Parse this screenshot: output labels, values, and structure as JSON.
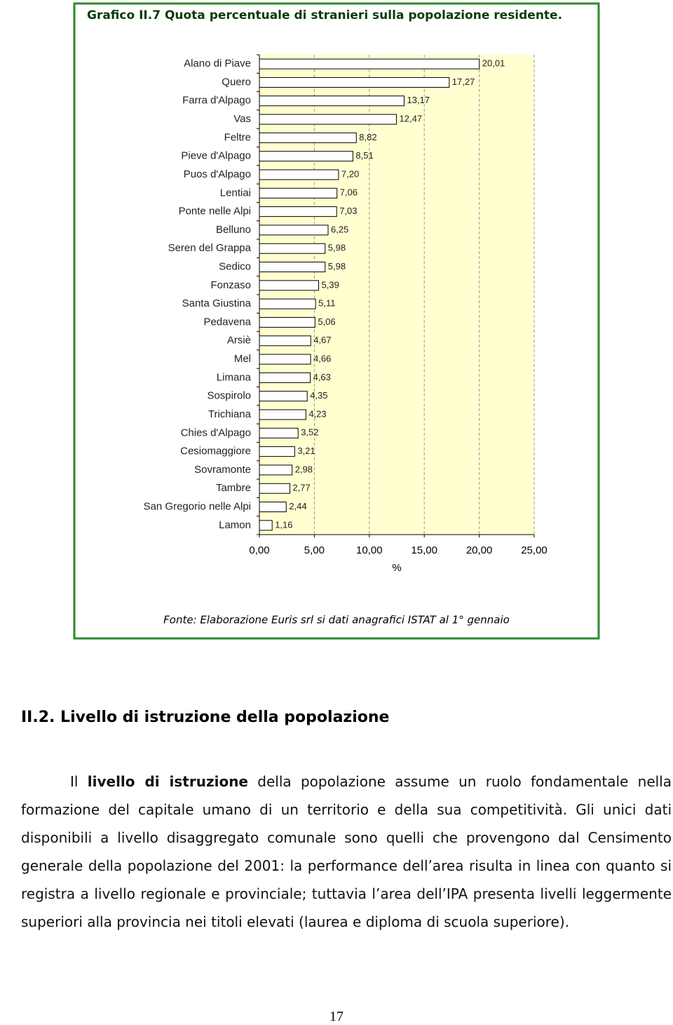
{
  "chart_data": {
    "type": "bar",
    "orientation": "horizontal",
    "title": "Grafico II.7 Quota percentuale di stranieri sulla popolazione residente.",
    "categories": [
      "Alano di Piave",
      "Quero",
      "Farra d'Alpago",
      "Vas",
      "Feltre",
      "Pieve d'Alpago",
      "Puos d'Alpago",
      "Lentiai",
      "Ponte nelle Alpi",
      "Belluno",
      "Seren del Grappa",
      "Sedico",
      "Fonzaso",
      "Santa Giustina",
      "Pedavena",
      "Arsiè",
      "Mel",
      "Limana",
      "Sospirolo",
      "Trichiana",
      "Chies d'Alpago",
      "Cesiomaggiore",
      "Sovramonte",
      "Tambre",
      "San Gregorio nelle Alpi",
      "Lamon"
    ],
    "values": [
      20.01,
      17.27,
      13.17,
      12.47,
      8.82,
      8.51,
      7.2,
      7.06,
      7.03,
      6.25,
      5.98,
      5.98,
      5.39,
      5.11,
      5.06,
      4.67,
      4.66,
      4.63,
      4.35,
      4.23,
      3.52,
      3.21,
      2.98,
      2.77,
      2.44,
      1.16
    ],
    "value_labels": [
      "20,01",
      "17,27",
      "13,17",
      "12,47",
      "8,82",
      "8,51",
      "7,20",
      "7,06",
      "7,03",
      "6,25",
      "5,98",
      "5,98",
      "5,39",
      "5,11",
      "5,06",
      "4,67",
      "4,66",
      "4,63",
      "4,35",
      "4,23",
      "3,52",
      "3,21",
      "2,98",
      "2,77",
      "2,44",
      "1,16"
    ],
    "color": "#ffffff",
    "xlim": [
      0,
      25
    ],
    "xticks": [
      {
        "value": 0,
        "label": "0,00"
      },
      {
        "value": 5,
        "label": "5,00"
      },
      {
        "value": 10,
        "label": "10,00"
      },
      {
        "value": 15,
        "label": "15,00"
      },
      {
        "value": 20,
        "label": "20,00"
      },
      {
        "value": 25,
        "label": "25,00"
      }
    ],
    "xlabel": "%",
    "grid": true,
    "source": "Fonte: Elaborazione Euris srl si dati anagrafici ISTAT al 1° gennaio"
  },
  "section": {
    "heading": "II.2. Livello di istruzione della popolazione",
    "paragraph": [
      "Il ",
      "livello di istruzione",
      " della popolazione assume un ruolo fondamentale nella formazione del capitale umano di un territorio e della sua competitività. Gli unici dati disponibili a livello disaggregato comunale sono quelli che provengono dal Censimento generale della popolazione del 2001: la performance dell’area risulta in linea con quanto si registra a livello regionale e provinciale; tuttavia l’area dell’IPA presenta livelli leggermente superiori alla provincia nei titoli elevati (laurea e diploma di scuola superiore)."
    ]
  },
  "page_number": "17"
}
